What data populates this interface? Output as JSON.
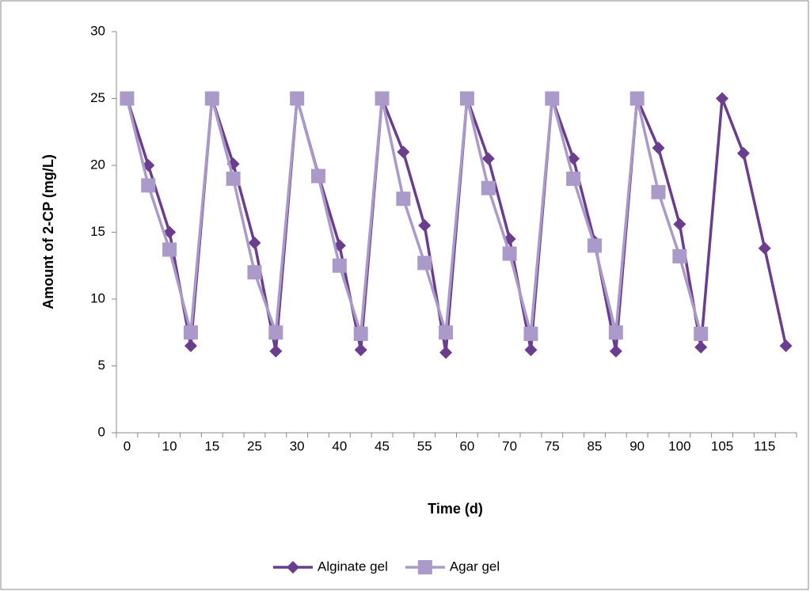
{
  "chart_data": {
    "type": "line",
    "x_label": "Time (d)",
    "y_label": "Amount of 2-CP (mg/L)",
    "categories": [
      "0",
      null,
      "10",
      null,
      "15",
      null,
      "25",
      null,
      "30",
      null,
      "40",
      null,
      "45",
      null,
      "55",
      null,
      "60",
      null,
      "70",
      null,
      "75",
      null,
      "85",
      null,
      "90",
      null,
      "100",
      null,
      "105",
      null,
      "115",
      null
    ],
    "series": [
      {
        "name": "Alginate gel",
        "color": "#6a3d8e",
        "marker": "diamond",
        "values": [
          25,
          20,
          15,
          6.5,
          25,
          20.1,
          14.2,
          6.1,
          25,
          19.3,
          14,
          6.2,
          25,
          21,
          15.5,
          6,
          25,
          20.5,
          14.5,
          6.2,
          25,
          20.5,
          14.3,
          6.1,
          25,
          21.3,
          15.6,
          6.4,
          25,
          20.9,
          13.8,
          6.5
        ]
      },
      {
        "name": "Agar gel",
        "color": "#a99ac9",
        "marker": "square",
        "values": [
          25,
          18.5,
          13.7,
          7.5,
          25,
          19,
          12,
          7.5,
          25,
          19.2,
          12.5,
          7.4,
          25,
          17.5,
          12.7,
          7.5,
          25,
          18.3,
          13.4,
          7.4,
          25,
          19,
          14,
          7.5,
          25,
          18,
          13.2,
          7.4,
          null,
          null,
          null,
          null
        ]
      }
    ],
    "ylim": [
      0,
      30
    ],
    "yticks": [
      0,
      5,
      10,
      15,
      20,
      25,
      30
    ],
    "grid": false,
    "legend": "bottom"
  }
}
